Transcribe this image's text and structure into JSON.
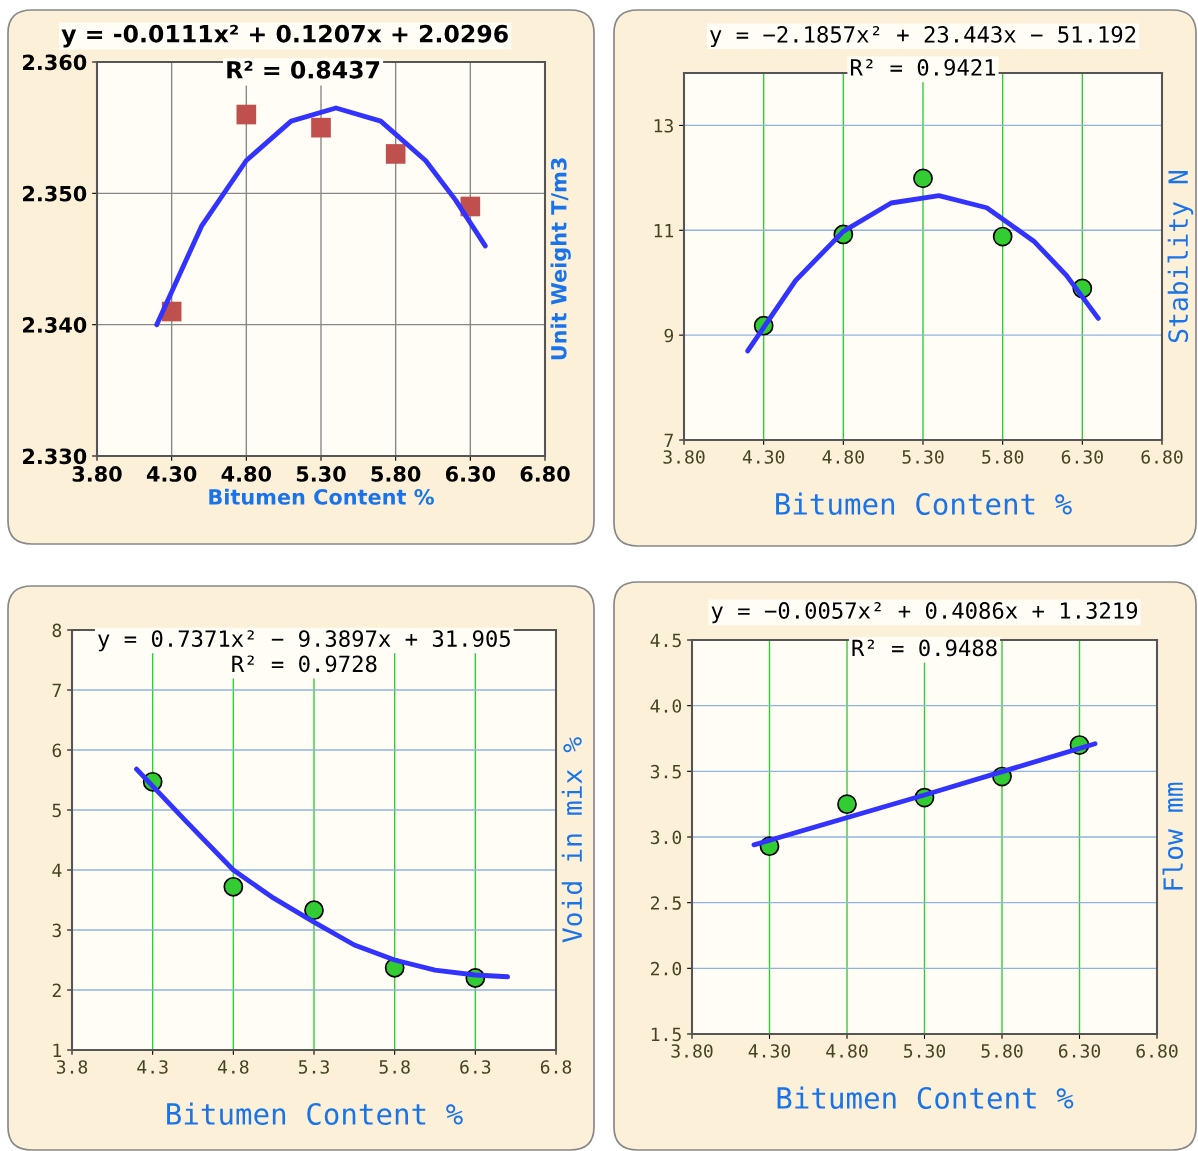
{
  "chart_data": [
    {
      "type": "scatter",
      "title": "y = -0.0111x² + 0.1207x + 2.0296",
      "subtitle": "R² = 0.8437",
      "xlabel": "Bitumen Content %",
      "ylabel": "Unit Weight T/m3",
      "xlim": [
        3.8,
        6.8
      ],
      "xticks": [
        {
          "value": 3.8,
          "label": "3.80"
        },
        {
          "value": 4.3,
          "label": "4.30"
        },
        {
          "value": 4.8,
          "label": "4.80"
        },
        {
          "value": 5.3,
          "label": "5.30"
        },
        {
          "value": 5.8,
          "label": "5.80"
        },
        {
          "value": 6.3,
          "label": "6.30"
        },
        {
          "value": 6.8,
          "label": "6.80"
        }
      ],
      "ylim": [
        2.33,
        2.36
      ],
      "yticks": [
        {
          "value": 2.33,
          "label": "2.330"
        },
        {
          "value": 2.34,
          "label": "2.340"
        },
        {
          "value": 2.35,
          "label": "2.350"
        },
        {
          "value": 2.36,
          "label": "2.360"
        }
      ],
      "grid": true,
      "legend": false,
      "series": [
        {
          "type": "scatter",
          "marker": "square",
          "color": "#c0504d",
          "x": [
            4.3,
            4.8,
            5.3,
            5.8,
            6.3
          ],
          "values": [
            2.341,
            2.356,
            2.355,
            2.353,
            2.349
          ]
        },
        {
          "type": "line",
          "marker": "none",
          "color": "#3333ff",
          "x": [
            4.2,
            4.5,
            4.8,
            5.1,
            5.4,
            5.7,
            6.0,
            6.2,
            6.4
          ],
          "values": [
            2.34,
            2.3475,
            2.3525,
            2.3555,
            2.3565,
            2.3555,
            2.3525,
            2.3495,
            2.346
          ]
        }
      ]
    },
    {
      "type": "scatter",
      "title": "y = −2.1857x² + 23.443x − 51.192",
      "subtitle": "R² = 0.9421",
      "xlabel": "Bitumen Content %",
      "ylabel": "Stability N",
      "xlim": [
        3.8,
        6.8
      ],
      "xticks": [
        {
          "value": 3.8,
          "label": "3.80"
        },
        {
          "value": 4.3,
          "label": "4.30"
        },
        {
          "value": 4.8,
          "label": "4.80"
        },
        {
          "value": 5.3,
          "label": "5.30"
        },
        {
          "value": 5.8,
          "label": "5.80"
        },
        {
          "value": 6.3,
          "label": "6.30"
        },
        {
          "value": 6.8,
          "label": "6.80"
        }
      ],
      "ylim": [
        7,
        14
      ],
      "yticks": [
        7,
        9,
        11,
        13
      ],
      "grid": true,
      "legend": false,
      "series": [
        {
          "type": "scatter",
          "marker": "circle",
          "color": "#33cc33",
          "x": [
            4.3,
            4.8,
            5.3,
            5.8,
            6.3
          ],
          "values": [
            9.18,
            10.92,
            11.99,
            10.88,
            9.89
          ]
        },
        {
          "type": "line",
          "marker": "none",
          "color": "#3333ff",
          "x": [
            4.2,
            4.5,
            4.8,
            5.1,
            5.4,
            5.7,
            6.0,
            6.2,
            6.4
          ],
          "values": [
            8.7,
            10.04,
            10.98,
            11.52,
            11.66,
            11.43,
            10.78,
            10.14,
            9.32
          ]
        }
      ]
    },
    {
      "type": "scatter",
      "title": "y = 0.7371x² − 9.3897x + 31.905",
      "subtitle": "R² = 0.9728",
      "xlabel": "Bitumen Content %",
      "ylabel": "Void in mix %",
      "xlim": [
        3.8,
        6.8
      ],
      "xticks": [
        3.8,
        4.3,
        4.8,
        5.3,
        5.8,
        6.3,
        6.8
      ],
      "ylim": [
        1,
        8
      ],
      "yticks": [
        1,
        2,
        3,
        4,
        5,
        6,
        7,
        8
      ],
      "grid": true,
      "legend": false,
      "series": [
        {
          "type": "scatter",
          "marker": "circle",
          "color": "#33cc33",
          "x": [
            4.3,
            4.8,
            5.3,
            5.8,
            6.3
          ],
          "values": [
            5.47,
            3.72,
            3.33,
            2.37,
            2.2
          ]
        },
        {
          "type": "line",
          "marker": "none",
          "color": "#3333ff",
          "x": [
            4.2,
            4.5,
            4.8,
            5.05,
            5.3,
            5.55,
            5.8,
            6.05,
            6.3,
            6.5
          ],
          "values": [
            5.68,
            4.83,
            4.0,
            3.53,
            3.13,
            2.75,
            2.5,
            2.33,
            2.25,
            2.22
          ]
        }
      ]
    },
    {
      "type": "scatter",
      "title": "y = −0.0057x² + 0.4086x + 1.3219",
      "subtitle": "R² = 0.9488",
      "xlabel": "Bitumen Content %",
      "ylabel": "Flow mm",
      "xlim": [
        3.8,
        6.8
      ],
      "xticks": [
        {
          "value": 3.8,
          "label": "3.80"
        },
        {
          "value": 4.3,
          "label": "4.30"
        },
        {
          "value": 4.8,
          "label": "4.80"
        },
        {
          "value": 5.3,
          "label": "5.30"
        },
        {
          "value": 5.8,
          "label": "5.80"
        },
        {
          "value": 6.3,
          "label": "6.30"
        },
        {
          "value": 6.8,
          "label": "6.80"
        }
      ],
      "ylim": [
        1.5,
        4.5
      ],
      "yticks": [
        {
          "value": 1.5,
          "label": "1.5"
        },
        {
          "value": 2.0,
          "label": "2.0"
        },
        {
          "value": 2.5,
          "label": "2.5"
        },
        {
          "value": 3.0,
          "label": "3.0"
        },
        {
          "value": 3.5,
          "label": "3.5"
        },
        {
          "value": 4.0,
          "label": "4.0"
        },
        {
          "value": 4.5,
          "label": "4.5"
        }
      ],
      "grid": true,
      "legend": false,
      "series": [
        {
          "type": "scatter",
          "marker": "circle",
          "color": "#33cc33",
          "x": [
            4.3,
            4.8,
            5.3,
            5.8,
            6.3
          ],
          "values": [
            2.93,
            3.25,
            3.3,
            3.46,
            3.7
          ]
        },
        {
          "type": "line",
          "marker": "none",
          "color": "#3333ff",
          "x": [
            4.2,
            5.3,
            6.4
          ],
          "values": [
            2.94,
            3.32,
            3.71
          ]
        }
      ]
    }
  ]
}
